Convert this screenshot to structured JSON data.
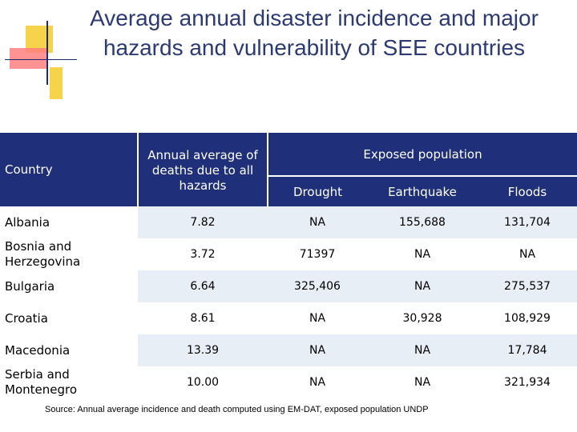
{
  "title": {
    "line1": "Average annual disaster incidence and major",
    "line2": "hazards and vulnerability of SEE countries"
  },
  "table": {
    "headers": {
      "country": "Country",
      "deaths": "Annual average of deaths due to all hazards",
      "exposed": "Exposed population",
      "drought": "Drought",
      "earthquake": "Earthquake",
      "floods": "Floods"
    },
    "rows": [
      {
        "country": "Albania",
        "deaths": "7.82",
        "drought": "NA",
        "earthquake": "155,688",
        "floods": "131,704"
      },
      {
        "country": "Bosnia and Herzegovina",
        "deaths": "3.72",
        "drought": "71397",
        "earthquake": "NA",
        "floods": "NA"
      },
      {
        "country": "Bulgaria",
        "deaths": "6.64",
        "drought": "325,406",
        "earthquake": "NA",
        "floods": "275,537"
      },
      {
        "country": "Croatia",
        "deaths": "8.61",
        "drought": "NA",
        "earthquake": "30,928",
        "floods": "108,929"
      },
      {
        "country": "Macedonia",
        "deaths": "13.39",
        "drought": "NA",
        "earthquake": "NA",
        "floods": "17,784"
      },
      {
        "country": "Serbia and Montenegro",
        "deaths": "10.00",
        "drought": "NA",
        "earthquake": "NA",
        "floods": "321,934"
      }
    ]
  },
  "source": "Source: Annual average incidence and death computed using EM-DAT, exposed population UNDP",
  "colors": {
    "header_bg": "#1f2f7a",
    "title": "#2b3a73",
    "row_alt": "#e8eef5"
  }
}
